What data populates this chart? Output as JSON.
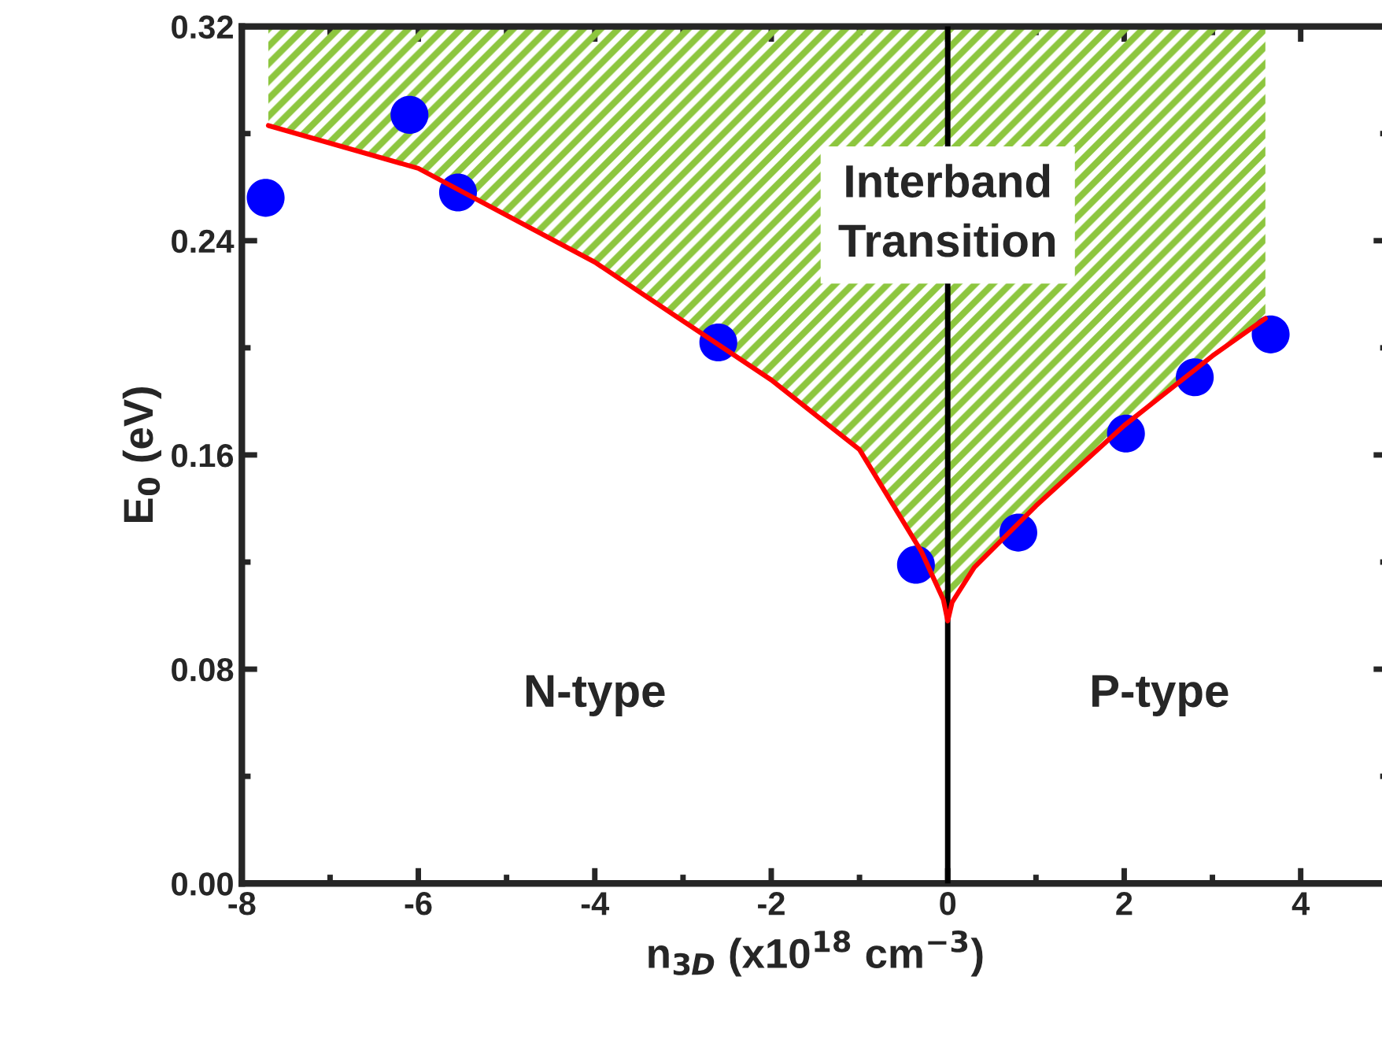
{
  "chart_data": {
    "type": "scatter",
    "xlabel": "n$_{3D}$ (x10$^{18}$ cm$^{−3}$)",
    "ylabel": "E$_{0}$ (eV)",
    "xlim": [
      -8,
      5
    ],
    "xticks": [
      -8,
      -6,
      -4,
      -2,
      0,
      2,
      4
    ],
    "ylim": [
      0,
      0.32
    ],
    "yticks": [
      {
        "value": 0,
        "label": "0.00"
      },
      {
        "value": 0.08,
        "label": "0.08"
      },
      {
        "value": 0.16,
        "label": "0.16"
      },
      {
        "value": 0.24,
        "label": "0.24"
      },
      {
        "value": 0.32,
        "label": "0.32"
      }
    ],
    "grid": false,
    "legend": false,
    "marker": "circle",
    "series": [
      {
        "color": "#0000ff",
        "x": [
          -7.73,
          -6.1,
          -5.55,
          -2.6,
          -0.36,
          0.8,
          2.02,
          2.8,
          3.66
        ],
        "values": [
          0.256,
          0.287,
          0.258,
          0.202,
          0.119,
          0.131,
          0.168,
          0.189,
          0.205
        ]
      },
      {
        "type": "line",
        "color": "#ff0000",
        "marker": "none",
        "x": [
          -7.7,
          -6,
          -4,
          -2,
          -1,
          -0.3,
          -0.05,
          0,
          0.05,
          0.3,
          1,
          2,
          3,
          3.6
        ],
        "values": [
          0.283,
          0.267,
          0.232,
          0.188,
          0.162,
          0.124,
          0.106,
          0.098,
          0.105,
          0.118,
          0.141,
          0.171,
          0.197,
          0.211
        ],
        "lower": [
          0.283,
          0.267,
          0.232,
          0.188,
          0.162,
          0.124,
          0.106,
          0.098,
          0.105,
          0.118,
          0.141,
          0.171,
          0.197,
          0.211
        ],
        "upper": [
          0.32,
          0.32,
          0.32,
          0.32,
          0.32,
          0.32,
          0.32,
          0.32,
          0.32,
          0.32,
          0.32,
          0.32,
          0.32,
          0.32
        ]
      }
    ],
    "ref_lines": [
      {
        "axis": "x",
        "value": 0,
        "color": "#000000"
      }
    ],
    "annotations": [
      "Interband\nTransition",
      "N-type",
      "P-type"
    ]
  }
}
